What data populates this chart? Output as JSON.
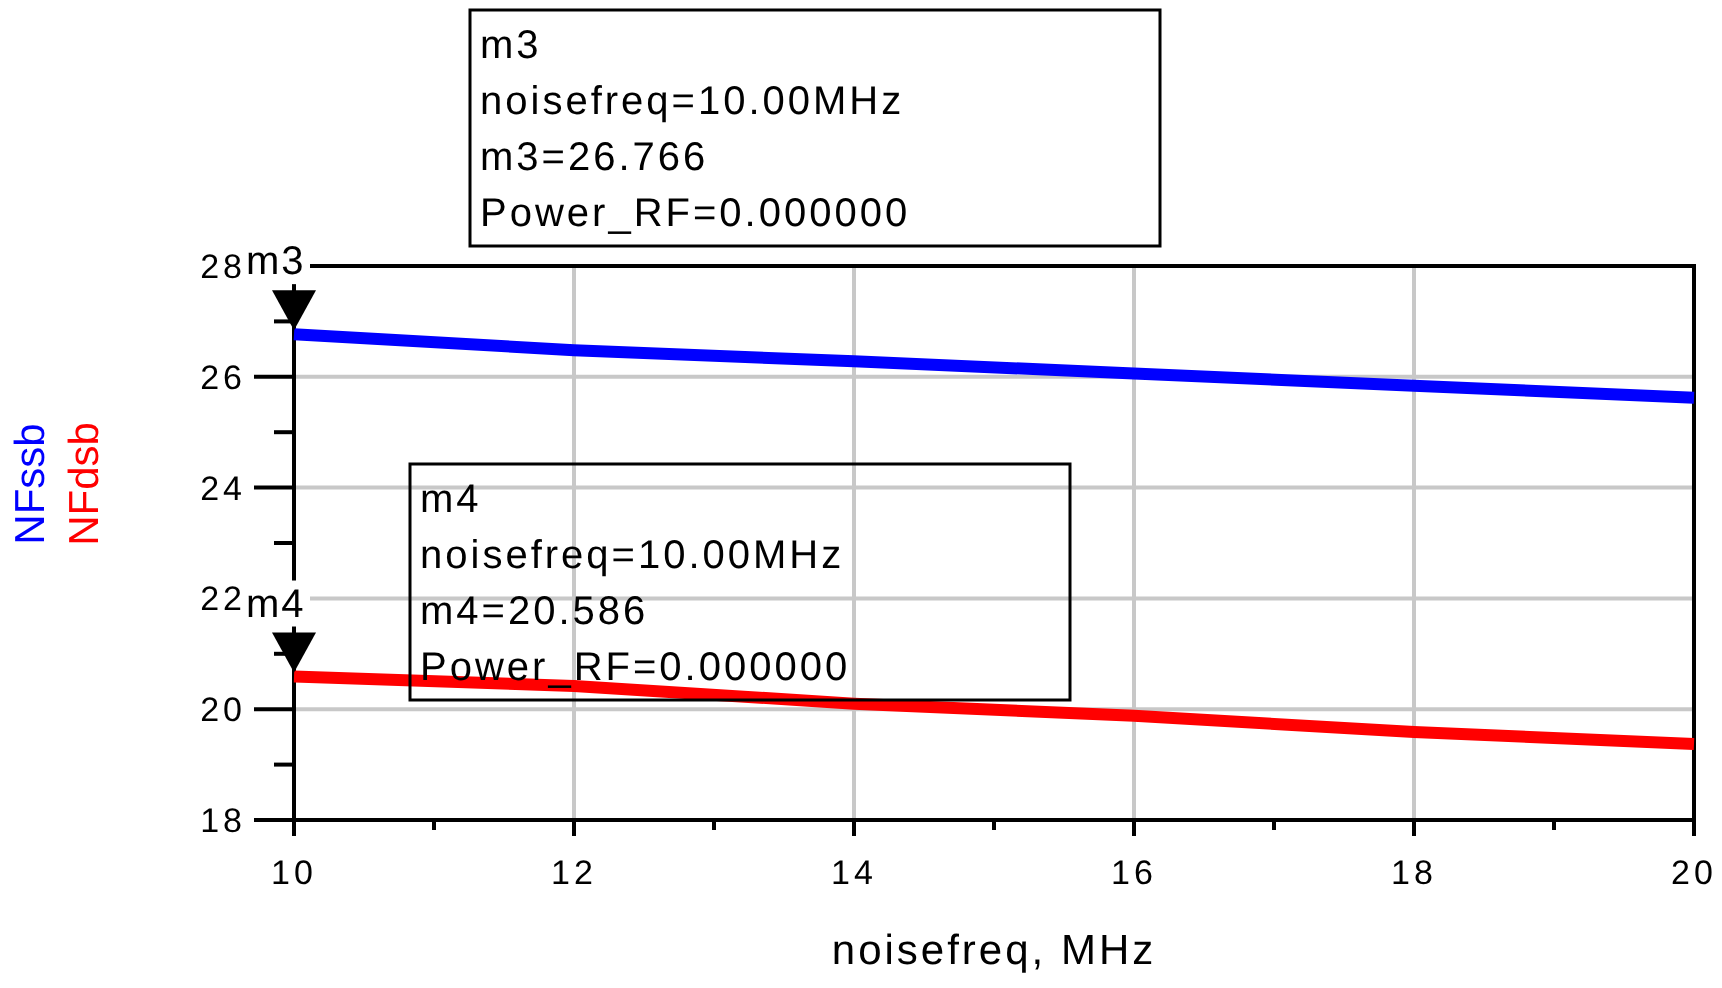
{
  "chart_data": {
    "type": "line",
    "xlabel": "noisefreq, MHz",
    "x": [
      10,
      12,
      14,
      16,
      18,
      20
    ],
    "series": [
      {
        "name": "NFssb",
        "color": "#0000ff",
        "values": [
          26.77,
          26.48,
          26.28,
          26.06,
          25.84,
          25.62
        ]
      },
      {
        "name": "NFdsb",
        "color": "#ff0000",
        "values": [
          20.59,
          20.42,
          20.1,
          19.88,
          19.59,
          19.37
        ]
      }
    ],
    "xlim": [
      10,
      20
    ],
    "xticks": [
      10,
      12,
      14,
      16,
      18,
      20
    ],
    "ylim": [
      18,
      28
    ],
    "yticks": [
      18,
      20,
      22,
      24,
      26,
      28
    ],
    "grid": true,
    "legend": "left",
    "marker": "none",
    "line_style": "solid",
    "annotations": [
      {
        "text": "m3",
        "x": 10,
        "y": 26.77
      },
      "m3\nnoisefreq=10.00MHz\nm3=26.766\nPower_RF=0.000000",
      {
        "text": "m4",
        "x": 10,
        "y": 20.59
      },
      "m4\nnoisefreq=10.00MHz\nm4=20.586\nPower_RF=0.000000"
    ]
  }
}
